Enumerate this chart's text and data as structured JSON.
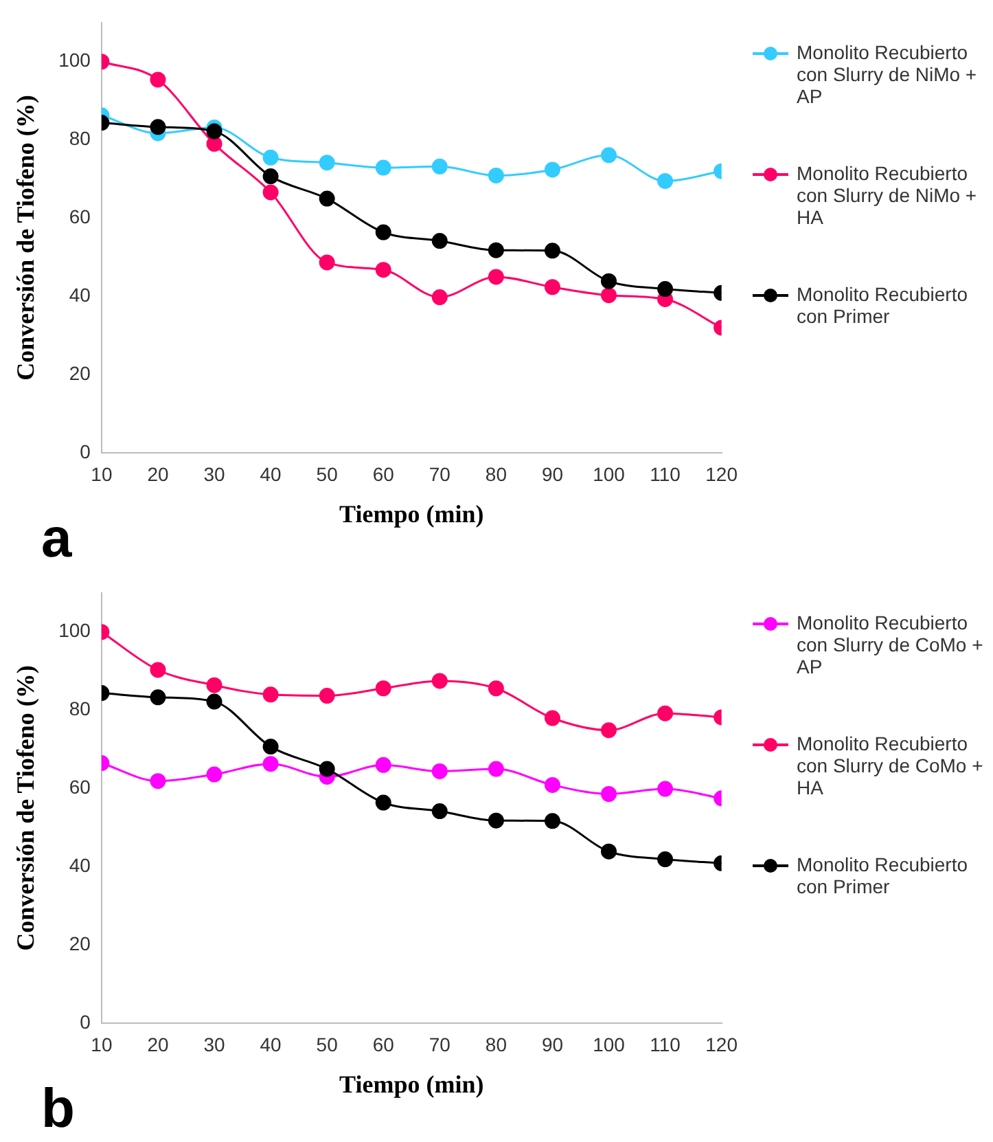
{
  "chart_data": [
    {
      "type": "line",
      "xlabel": "Tiempo (min)",
      "ylabel": "Conversión de Tiofeno (%)",
      "x": [
        10,
        20,
        30,
        40,
        50,
        60,
        70,
        80,
        90,
        100,
        110,
        120
      ],
      "xlim": [
        10,
        120
      ],
      "xticks": [
        10,
        20,
        30,
        40,
        50,
        60,
        70,
        80,
        90,
        100,
        110,
        120
      ],
      "ylim": [
        0,
        110
      ],
      "yticks": [
        0,
        20,
        40,
        60,
        80,
        100
      ],
      "grid": false,
      "legend": "right",
      "marker": "circle",
      "annotations": [
        "a"
      ],
      "series": [
        {
          "name": "Monolito Recubierto con Slurry de NiMo + AP",
          "color": "#33ccff",
          "values": [
            86.3,
            81.7,
            83.2,
            75.5,
            74.2,
            72.9,
            73.2,
            70.9,
            72.4,
            76.1,
            69.5,
            72
          ]
        },
        {
          "name": "Monolito Recubierto con Slurry de NiMo + HA",
          "color": "#ff0066",
          "values": [
            100,
            95.4,
            79,
            66.6,
            48.7,
            46.8,
            39.8,
            45,
            42.4,
            40.3,
            39.3,
            32
          ]
        },
        {
          "name": "Monolito Recubierto con Primer",
          "color": "#000000",
          "values": [
            84.4,
            83.3,
            82.2,
            70.7,
            65,
            56.4,
            54.2,
            51.8,
            51.7,
            43.9,
            41.9,
            40.9
          ]
        }
      ]
    },
    {
      "type": "line",
      "xlabel": "Tiempo (min)",
      "ylabel": "Conversión de Tiofeno (%)",
      "x": [
        10,
        20,
        30,
        40,
        50,
        60,
        70,
        80,
        90,
        100,
        110,
        120
      ],
      "xlim": [
        10,
        120
      ],
      "xticks": [
        10,
        20,
        30,
        40,
        50,
        60,
        70,
        80,
        90,
        100,
        110,
        120
      ],
      "ylim": [
        0,
        110
      ],
      "yticks": [
        0,
        20,
        40,
        60,
        80,
        100
      ],
      "grid": false,
      "legend": "right",
      "marker": "circle",
      "annotations": [
        "b"
      ],
      "series": [
        {
          "name": "Monolito Recubierto con Slurry de CoMo + AP",
          "color": "#ff00ff",
          "values": [
            66.5,
            61.9,
            63.6,
            66.3,
            63,
            66,
            64.4,
            65,
            60.9,
            58.6,
            59.9,
            57.5
          ]
        },
        {
          "name": "Monolito Recubierto con Slurry de CoMo + HA",
          "color": "#ff0066",
          "values": [
            100,
            90.3,
            86.4,
            84,
            83.7,
            85.6,
            87.5,
            85.6,
            78,
            74.9,
            79.2,
            78.2
          ]
        },
        {
          "name": "Monolito Recubierto con Primer",
          "color": "#000000",
          "values": [
            84.4,
            83.3,
            82.2,
            70.7,
            65,
            56.4,
            54.2,
            51.8,
            51.7,
            43.9,
            41.9,
            40.9
          ]
        }
      ]
    }
  ]
}
